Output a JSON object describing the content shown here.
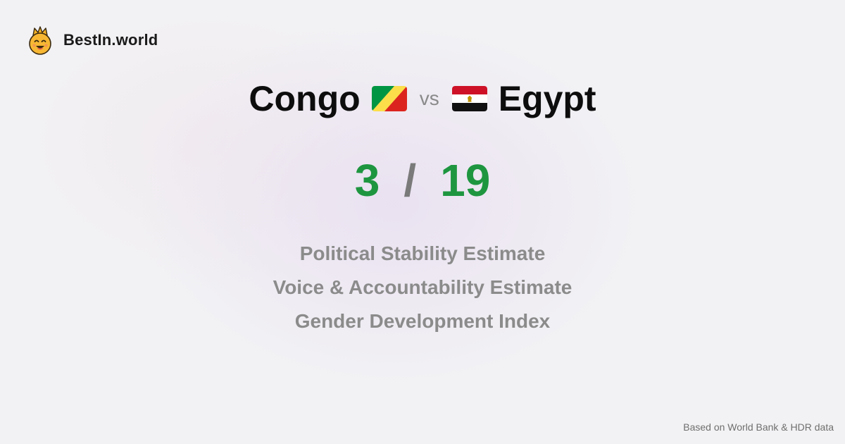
{
  "brand": {
    "name": "BestIn.world",
    "logo_icon": "crowned-smiley-icon"
  },
  "comparison": {
    "left": {
      "name": "Congo",
      "flag_icon": "congo-flag-icon"
    },
    "vs_label": "vs",
    "right": {
      "name": "Egypt",
      "flag_icon": "egypt-flag-icon"
    }
  },
  "score": {
    "left": "3",
    "separator": "/",
    "right": "19",
    "color": "#1e9640"
  },
  "metrics": [
    "Political Stability Estimate",
    "Voice & Accountability Estimate",
    "Gender Development Index"
  ],
  "footer": {
    "source_note": "Based on World Bank & HDR data"
  }
}
